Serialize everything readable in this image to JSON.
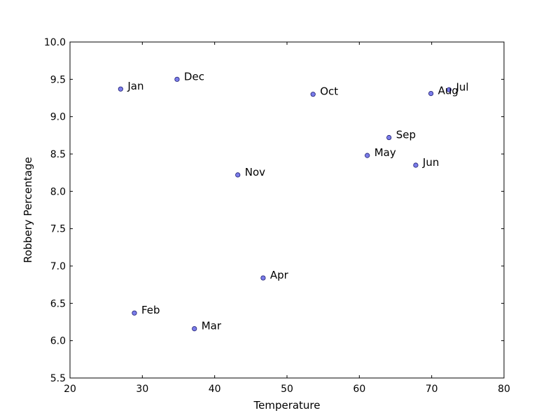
{
  "chart_data": {
    "type": "scatter",
    "title": "",
    "xlabel": "Temperature",
    "ylabel": "Robbery Percentage",
    "xlim": [
      20,
      80
    ],
    "ylim": [
      5.5,
      10.0
    ],
    "xticks": [
      "20",
      "30",
      "40",
      "50",
      "60",
      "70",
      "80"
    ],
    "yticks": [
      "5.5",
      "6.0",
      "6.5",
      "7.0",
      "7.5",
      "8.0",
      "8.5",
      "9.0",
      "9.5",
      "10.0"
    ],
    "grid": false,
    "marker_color": "#6b6ee8",
    "marker_edge_color": "#1f1f6f",
    "points": [
      {
        "label": "Jan",
        "x": 27.0,
        "y": 9.37
      },
      {
        "label": "Feb",
        "x": 28.9,
        "y": 6.37
      },
      {
        "label": "Mar",
        "x": 37.2,
        "y": 6.16
      },
      {
        "label": "Apr",
        "x": 46.7,
        "y": 6.84
      },
      {
        "label": "May",
        "x": 61.1,
        "y": 8.48
      },
      {
        "label": "Jun",
        "x": 67.8,
        "y": 8.35
      },
      {
        "label": "Jul",
        "x": 72.4,
        "y": 9.36
      },
      {
        "label": "Aug",
        "x": 69.9,
        "y": 9.31
      },
      {
        "label": "Sep",
        "x": 64.1,
        "y": 8.72
      },
      {
        "label": "Oct",
        "x": 53.6,
        "y": 9.3
      },
      {
        "label": "Nov",
        "x": 43.2,
        "y": 8.22
      },
      {
        "label": "Dec",
        "x": 34.8,
        "y": 9.5
      }
    ]
  }
}
